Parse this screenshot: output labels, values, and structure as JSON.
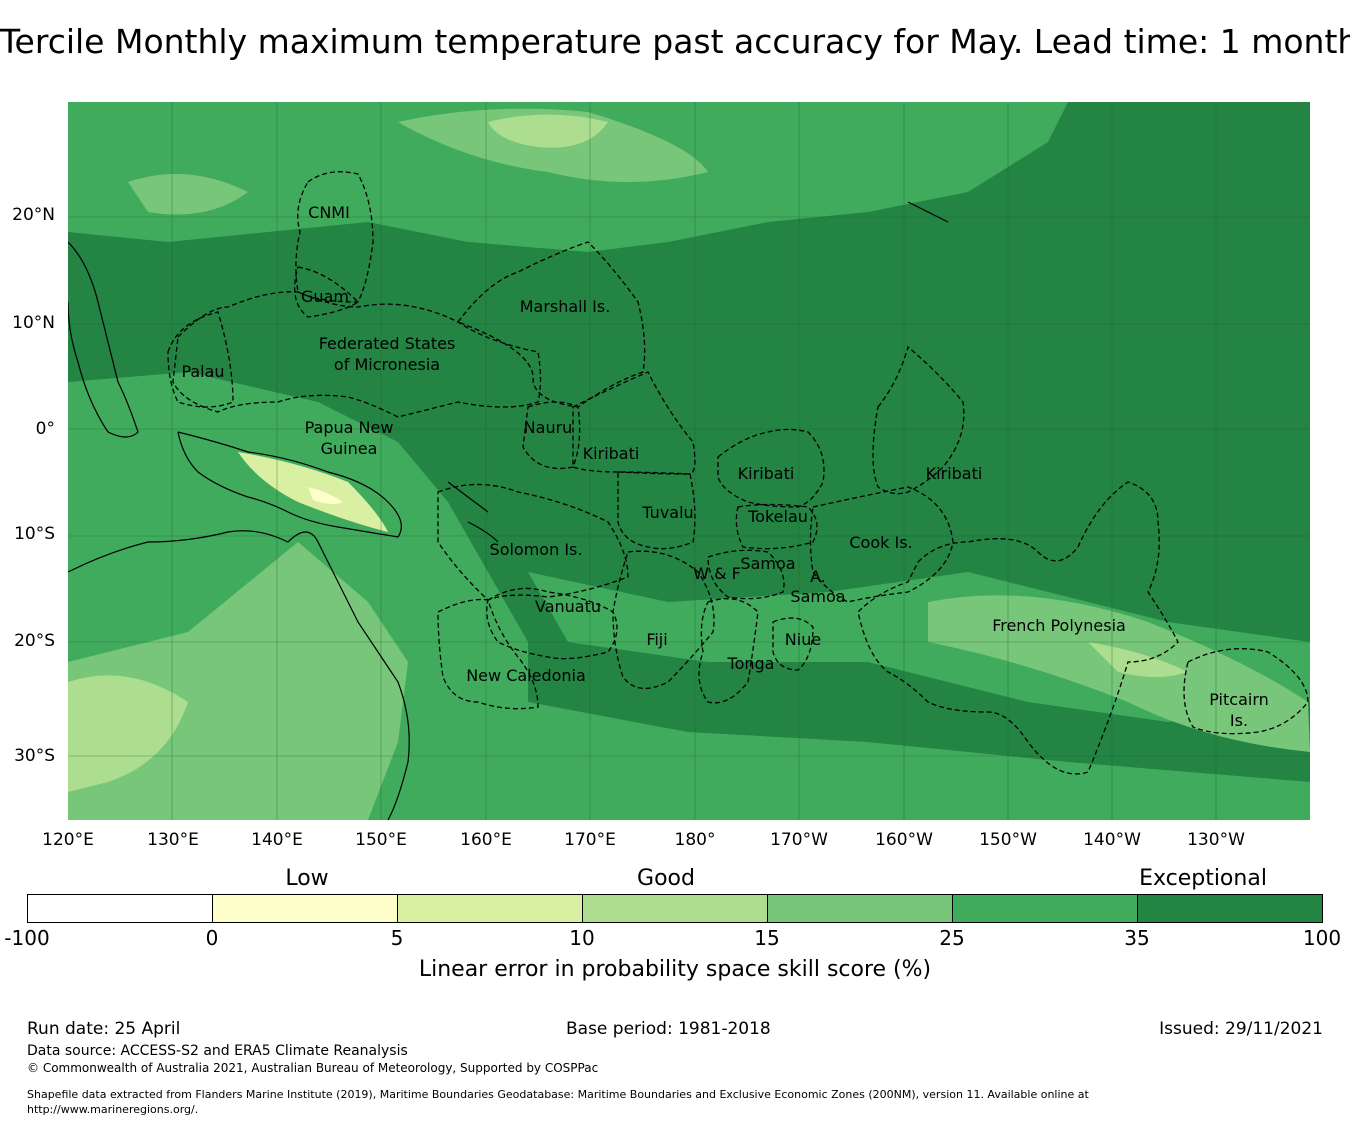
{
  "title": "Tercile Monthly maximum temperature past accuracy for May. Lead time: 1 month",
  "lat_labels": [
    "20°N",
    "10°N",
    "0°",
    "10°S",
    "20°S",
    "30°S"
  ],
  "lon_labels": [
    "120°E",
    "130°E",
    "140°E",
    "150°E",
    "160°E",
    "170°E",
    "180°",
    "170°W",
    "160°W",
    "150°W",
    "140°W",
    "130°W"
  ],
  "regions": [
    {
      "lines": [
        "CNMI"
      ]
    },
    {
      "lines": [
        "Guam"
      ]
    },
    {
      "lines": [
        "Marshall Is."
      ]
    },
    {
      "lines": [
        "Federated States",
        "of Micronesia"
      ]
    },
    {
      "lines": [
        "Palau"
      ]
    },
    {
      "lines": [
        "Papua New",
        "Guinea"
      ]
    },
    {
      "lines": [
        "Nauru"
      ]
    },
    {
      "lines": [
        "Kiribati"
      ]
    },
    {
      "lines": [
        "Kiribati"
      ]
    },
    {
      "lines": [
        "Kiribati"
      ]
    },
    {
      "lines": [
        "Tuvalu"
      ]
    },
    {
      "lines": [
        "Tokelau"
      ]
    },
    {
      "lines": [
        "Solomon Is."
      ]
    },
    {
      "lines": [
        "Samoa"
      ]
    },
    {
      "lines": [
        "W & F"
      ]
    },
    {
      "lines": [
        "A."
      ]
    },
    {
      "lines": [
        "Samoa"
      ]
    },
    {
      "lines": [
        "Cook Is."
      ]
    },
    {
      "lines": [
        "Vanuatu"
      ]
    },
    {
      "lines": [
        "French Polynesia"
      ]
    },
    {
      "lines": [
        "Fiji"
      ]
    },
    {
      "lines": [
        "Niue"
      ]
    },
    {
      "lines": [
        "Tonga"
      ]
    },
    {
      "lines": [
        "New Caledonia"
      ]
    },
    {
      "lines": [
        "Pitcairn",
        "Is."
      ]
    }
  ],
  "colorbar": {
    "category_labels": [
      "Low",
      "Good",
      "Exceptional"
    ],
    "ticks": [
      "-100",
      "0",
      "5",
      "10",
      "15",
      "25",
      "35",
      "100"
    ],
    "colors": [
      "#ffffff",
      "#ffffcc",
      "#d9f0a3",
      "#addd8e",
      "#78c679",
      "#41ab5d",
      "#238443"
    ],
    "label": "Linear error in probability space skill score (%)"
  },
  "footer": {
    "run_date": "Run date: 25 April",
    "base_period": "Base period: 1981-2018",
    "issued": "Issued: 29/11/2021",
    "data_source": "Data source: ACCESS-S2 and ERA5 Climate Reanalysis",
    "copyright": "© Commonwealth of Australia 2021, Australian Bureau of Meteorology, Supported by COSPPac",
    "shapefile_1": "Shapefile data extracted from Flanders Marine Institute (2019), Maritime Boundaries Geodatabase: Maritime Boundaries and Exclusive Economic Zones (200NM), version 11. Available online at",
    "shapefile_2": "http://www.marineregions.org/."
  }
}
